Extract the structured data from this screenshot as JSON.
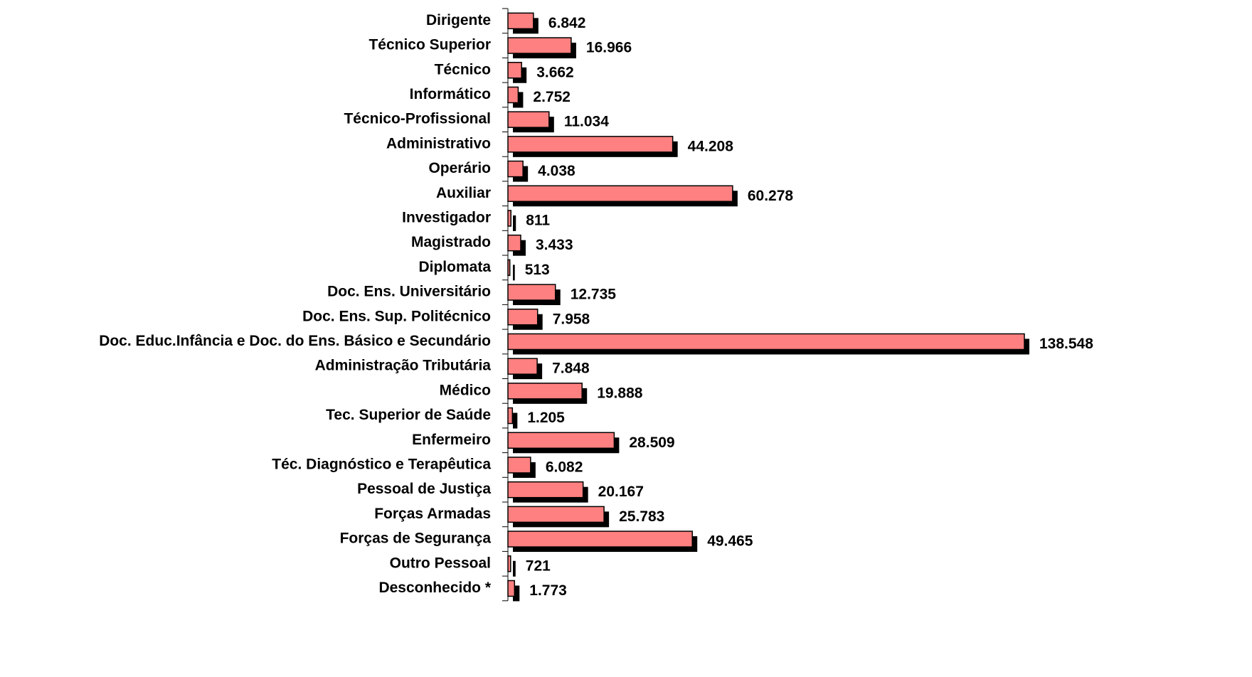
{
  "chart_data": {
    "type": "barh",
    "categories": [
      "Dirigente",
      "Técnico Superior",
      "Técnico",
      "Informático",
      "Técnico-Profissional",
      "Administrativo",
      "Operário",
      "Auxiliar",
      "Investigador",
      "Magistrado",
      "Diplomata",
      "Doc. Ens. Universitário",
      "Doc. Ens. Sup. Politécnico",
      "Doc. Educ.Infância e Doc. do Ens. Básico e Secundário",
      "Administração Tributária",
      "Médico",
      "Tec. Superior de Saúde",
      "Enfermeiro",
      "Téc. Diagnóstico e Terapêutica",
      "Pessoal de Justiça",
      "Forças Armadas",
      "Forças de Segurança",
      "Outro Pessoal",
      "Desconhecido *"
    ],
    "values": [
      6842,
      16966,
      3662,
      2752,
      11034,
      44208,
      4038,
      60278,
      811,
      3433,
      513,
      12735,
      7958,
      138548,
      7848,
      19888,
      1205,
      28509,
      6082,
      20167,
      25783,
      49465,
      721,
      1773
    ],
    "value_labels": [
      "6.842",
      "16.966",
      "3.662",
      "2.752",
      "11.034",
      "44.208",
      "4.038",
      "60.278",
      "811",
      "3.433",
      "513",
      "12.735",
      "7.958",
      "138.548",
      "7.848",
      "19.888",
      "1.205",
      "28.509",
      "6.082",
      "20.167",
      "25.783",
      "49.465",
      "721",
      "1.773"
    ],
    "color": "#ff8080"
  }
}
